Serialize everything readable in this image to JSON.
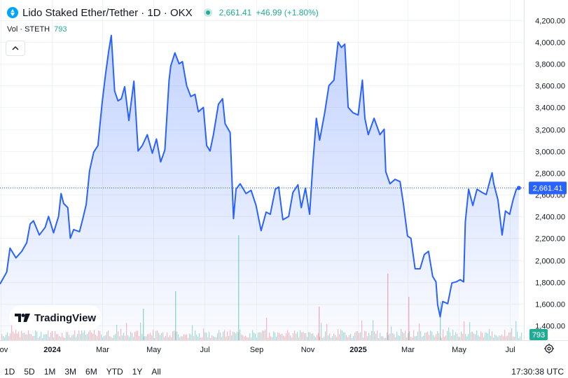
{
  "header": {
    "title": "Lido Staked Ether/Tether · 1D · OKX",
    "price": "2,661.41",
    "change": "+46.99 (+1.80%)"
  },
  "volume": {
    "label": "Vol · STETH",
    "value": "793"
  },
  "logo": {
    "text": "TradingView"
  },
  "range_buttons": [
    "1D",
    "5D",
    "1M",
    "3M",
    "6M",
    "YTD",
    "1Y",
    "All"
  ],
  "clock": "17:30:38 UTC",
  "colors": {
    "line": "#2962ff",
    "up": "#22ab94",
    "down": "#f7525f",
    "grid": "#f0f3fa"
  },
  "icons": {
    "logo": "steth-logo-icon",
    "collapse": "chevron-up-icon",
    "tradingview": "tradingview-logo-icon",
    "settings": "gear-icon"
  },
  "chart_data": {
    "type": "area",
    "y_ticks": [
      1400,
      1600,
      1800,
      2000,
      2200,
      2400,
      2600,
      2800,
      3000,
      3200,
      3400,
      3600,
      3800,
      4000,
      4200
    ],
    "y_tick_labels": [
      "1,400.00",
      "1,600.00",
      "1,800.00",
      "2,000.00",
      "2,200.00",
      "2,400.00",
      "2,600.00",
      "2,800.00",
      "3,000.00",
      "3,200.00",
      "3,400.00",
      "3,600.00",
      "3,800.00",
      "4,000.00",
      "4,200.00"
    ],
    "ylim": [
      1265,
      4385
    ],
    "xlim": [
      "2023-10-31",
      "2025-07-18"
    ],
    "x_ticks": [
      {
        "date": "2023-11-01",
        "label": "Nov"
      },
      {
        "date": "2024-01-01",
        "label": "2024"
      },
      {
        "date": "2024-03-01",
        "label": "Mar"
      },
      {
        "date": "2024-05-01",
        "label": "May"
      },
      {
        "date": "2024-07-01",
        "label": "Jul"
      },
      {
        "date": "2024-09-01",
        "label": "Sep"
      },
      {
        "date": "2024-11-01",
        "label": "Nov"
      },
      {
        "date": "2025-01-01",
        "label": "2025"
      },
      {
        "date": "2025-03-01",
        "label": "Mar"
      },
      {
        "date": "2025-05-01",
        "label": "May"
      },
      {
        "date": "2025-07-01",
        "label": "Jul"
      }
    ],
    "last_value": 2661.41,
    "last_value_label": "2,661.41",
    "volume_last_label": "793",
    "series": [
      {
        "points": [
          [
            "2023-10-31",
            1780
          ],
          [
            "2023-11-08",
            1890
          ],
          [
            "2023-11-12",
            2110
          ],
          [
            "2023-11-19",
            2020
          ],
          [
            "2023-11-26",
            2080
          ],
          [
            "2023-12-02",
            2160
          ],
          [
            "2023-12-06",
            2330
          ],
          [
            "2023-12-10",
            2360
          ],
          [
            "2023-12-17",
            2230
          ],
          [
            "2023-12-24",
            2300
          ],
          [
            "2023-12-28",
            2400
          ],
          [
            "2024-01-03",
            2250
          ],
          [
            "2024-01-09",
            2400
          ],
          [
            "2024-01-12",
            2610
          ],
          [
            "2024-01-15",
            2520
          ],
          [
            "2024-01-20",
            2480
          ],
          [
            "2024-01-23",
            2200
          ],
          [
            "2024-01-27",
            2280
          ],
          [
            "2024-02-03",
            2260
          ],
          [
            "2024-02-07",
            2380
          ],
          [
            "2024-02-11",
            2510
          ],
          [
            "2024-02-15",
            2820
          ],
          [
            "2024-02-20",
            2990
          ],
          [
            "2024-02-25",
            3050
          ],
          [
            "2024-03-01",
            3440
          ],
          [
            "2024-03-05",
            3700
          ],
          [
            "2024-03-09",
            3920
          ],
          [
            "2024-03-12",
            4060
          ],
          [
            "2024-03-16",
            3550
          ],
          [
            "2024-03-20",
            3460
          ],
          [
            "2024-03-24",
            3480
          ],
          [
            "2024-03-28",
            3590
          ],
          [
            "2024-04-02",
            3280
          ],
          [
            "2024-04-08",
            3640
          ],
          [
            "2024-04-13",
            3000
          ],
          [
            "2024-04-18",
            3050
          ],
          [
            "2024-04-24",
            3150
          ],
          [
            "2024-04-30",
            2980
          ],
          [
            "2024-05-05",
            3110
          ],
          [
            "2024-05-10",
            2900
          ],
          [
            "2024-05-15",
            3010
          ],
          [
            "2024-05-20",
            3650
          ],
          [
            "2024-05-22",
            3780
          ],
          [
            "2024-05-27",
            3900
          ],
          [
            "2024-06-01",
            3800
          ],
          [
            "2024-06-05",
            3820
          ],
          [
            "2024-06-10",
            3600
          ],
          [
            "2024-06-15",
            3500
          ],
          [
            "2024-06-20",
            3520
          ],
          [
            "2024-06-24",
            3360
          ],
          [
            "2024-06-30",
            3400
          ],
          [
            "2024-07-04",
            3050
          ],
          [
            "2024-07-08",
            3000
          ],
          [
            "2024-07-12",
            3150
          ],
          [
            "2024-07-18",
            3430
          ],
          [
            "2024-07-23",
            3480
          ],
          [
            "2024-07-26",
            3250
          ],
          [
            "2024-08-01",
            3170
          ],
          [
            "2024-08-05",
            2380
          ],
          [
            "2024-08-08",
            2650
          ],
          [
            "2024-08-13",
            2700
          ],
          [
            "2024-08-20",
            2610
          ],
          [
            "2024-08-26",
            2640
          ],
          [
            "2024-09-01",
            2500
          ],
          [
            "2024-09-07",
            2270
          ],
          [
            "2024-09-13",
            2440
          ],
          [
            "2024-09-18",
            2420
          ],
          [
            "2024-09-24",
            2650
          ],
          [
            "2024-09-28",
            2670
          ],
          [
            "2024-10-03",
            2370
          ],
          [
            "2024-10-10",
            2400
          ],
          [
            "2024-10-15",
            2620
          ],
          [
            "2024-10-21",
            2690
          ],
          [
            "2024-10-25",
            2480
          ],
          [
            "2024-10-30",
            2660
          ],
          [
            "2024-11-04",
            2420
          ],
          [
            "2024-11-08",
            2900
          ],
          [
            "2024-11-12",
            3300
          ],
          [
            "2024-11-16",
            3100
          ],
          [
            "2024-11-22",
            3350
          ],
          [
            "2024-11-27",
            3600
          ],
          [
            "2024-12-03",
            3650
          ],
          [
            "2024-12-08",
            4000
          ],
          [
            "2024-12-12",
            3950
          ],
          [
            "2024-12-16",
            3980
          ],
          [
            "2024-12-20",
            3400
          ],
          [
            "2024-12-26",
            3350
          ],
          [
            "2025-01-01",
            3330
          ],
          [
            "2025-01-06",
            3650
          ],
          [
            "2025-01-09",
            3300
          ],
          [
            "2025-01-13",
            3150
          ],
          [
            "2025-01-20",
            3300
          ],
          [
            "2025-01-27",
            3150
          ],
          [
            "2025-02-01",
            3200
          ],
          [
            "2025-02-03",
            2810
          ],
          [
            "2025-02-08",
            2700
          ],
          [
            "2025-02-14",
            2740
          ],
          [
            "2025-02-20",
            2720
          ],
          [
            "2025-02-24",
            2520
          ],
          [
            "2025-03-01",
            2220
          ],
          [
            "2025-03-05",
            2200
          ],
          [
            "2025-03-10",
            1920
          ],
          [
            "2025-03-16",
            1920
          ],
          [
            "2025-03-21",
            2050
          ],
          [
            "2025-03-26",
            2080
          ],
          [
            "2025-03-31",
            1850
          ],
          [
            "2025-04-04",
            1800
          ],
          [
            "2025-04-06",
            1590
          ],
          [
            "2025-04-09",
            1480
          ],
          [
            "2025-04-12",
            1620
          ],
          [
            "2025-04-18",
            1600
          ],
          [
            "2025-04-23",
            1790
          ],
          [
            "2025-04-28",
            1800
          ],
          [
            "2025-05-03",
            1820
          ],
          [
            "2025-05-07",
            1800
          ],
          [
            "2025-05-09",
            2350
          ],
          [
            "2025-05-13",
            2650
          ],
          [
            "2025-05-18",
            2500
          ],
          [
            "2025-05-23",
            2650
          ],
          [
            "2025-05-29",
            2620
          ],
          [
            "2025-06-03",
            2600
          ],
          [
            "2025-06-10",
            2800
          ],
          [
            "2025-06-12",
            2700
          ],
          [
            "2025-06-17",
            2550
          ],
          [
            "2025-06-22",
            2230
          ],
          [
            "2025-06-26",
            2450
          ],
          [
            "2025-07-01",
            2420
          ],
          [
            "2025-07-05",
            2550
          ],
          [
            "2025-07-09",
            2650
          ],
          [
            "2025-07-12",
            2661.41
          ]
        ]
      }
    ]
  }
}
